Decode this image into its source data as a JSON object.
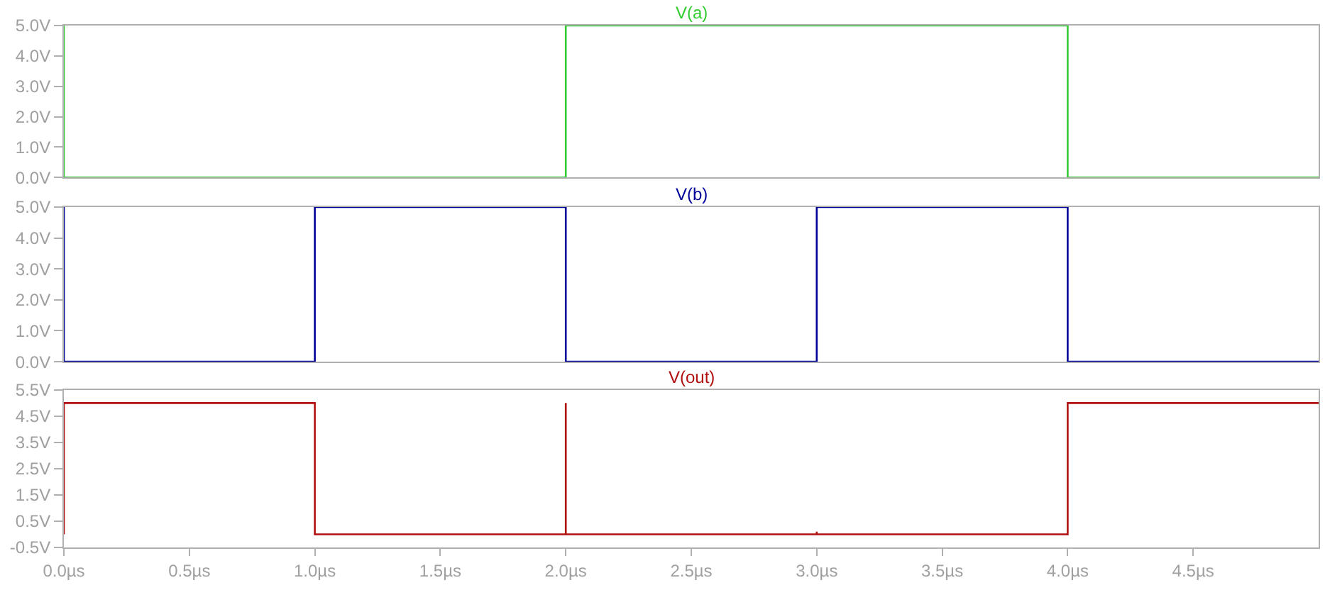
{
  "chart_data": [
    {
      "type": "line",
      "xlim": [
        0,
        5.0
      ],
      "ylim": [
        0,
        5.0
      ],
      "tick_labels": "y",
      "yticks": [
        {
          "value": 0,
          "label": "0.0V"
        },
        {
          "value": 1,
          "label": "1.0V"
        },
        {
          "value": 2,
          "label": "2.0V"
        },
        {
          "value": 3,
          "label": "3.0V"
        },
        {
          "value": 4,
          "label": "4.0V"
        },
        {
          "value": 5,
          "label": "5.0V"
        }
      ],
      "series": [
        {
          "name": "V(a)",
          "color": "#33cc33",
          "x": [
            0,
            0,
            2,
            2,
            4,
            4,
            5.0
          ],
          "values": [
            5,
            0,
            0,
            5,
            5,
            0,
            0
          ]
        }
      ]
    },
    {
      "type": "line",
      "xlim": [
        0,
        5.0
      ],
      "ylim": [
        0,
        5.0
      ],
      "tick_labels": "y",
      "yticks": [
        {
          "value": 0,
          "label": "0.0V"
        },
        {
          "value": 1,
          "label": "1.0V"
        },
        {
          "value": 2,
          "label": "2.0V"
        },
        {
          "value": 3,
          "label": "3.0V"
        },
        {
          "value": 4,
          "label": "4.0V"
        },
        {
          "value": 5,
          "label": "5.0V"
        }
      ],
      "series": [
        {
          "name": "V(b)",
          "color": "#000099",
          "x": [
            0,
            0,
            1,
            1,
            2,
            2,
            3,
            3,
            4,
            4,
            5.0
          ],
          "values": [
            5,
            0,
            0,
            5,
            5,
            0,
            0,
            5,
            5,
            0,
            0
          ]
        }
      ]
    },
    {
      "type": "line",
      "xlim": [
        0,
        5.0
      ],
      "ylim": [
        -0.5,
        5.5
      ],
      "xticks": [
        {
          "value": 0,
          "label": "0.0µs"
        },
        {
          "value": 0.5,
          "label": "0.5µs"
        },
        {
          "value": 1,
          "label": "1.0µs"
        },
        {
          "value": 1.5,
          "label": "1.5µs"
        },
        {
          "value": 2,
          "label": "2.0µs"
        },
        {
          "value": 2.5,
          "label": "2.5µs"
        },
        {
          "value": 3,
          "label": "3.0µs"
        },
        {
          "value": 3.5,
          "label": "3.5µs"
        },
        {
          "value": 4,
          "label": "4.0µs"
        },
        {
          "value": 4.5,
          "label": "4.5µs"
        }
      ],
      "yticks": [
        {
          "value": -0.5,
          "label": "-0.5V"
        },
        {
          "value": 0.5,
          "label": "0.5V"
        },
        {
          "value": 1.5,
          "label": "1.5V"
        },
        {
          "value": 2.5,
          "label": "2.5V"
        },
        {
          "value": 3.5,
          "label": "3.5V"
        },
        {
          "value": 4.5,
          "label": "4.5V"
        },
        {
          "value": 5.5,
          "label": "5.5V"
        }
      ],
      "series": [
        {
          "name": "V(out)",
          "color": "#b01010",
          "x": [
            0,
            0,
            1,
            1,
            2,
            2,
            2,
            3,
            3,
            3,
            4,
            4,
            5.0
          ],
          "values": [
            0,
            5,
            5,
            0,
            0,
            5,
            0,
            0,
            0.1,
            0,
            0,
            5,
            5
          ]
        }
      ]
    }
  ]
}
